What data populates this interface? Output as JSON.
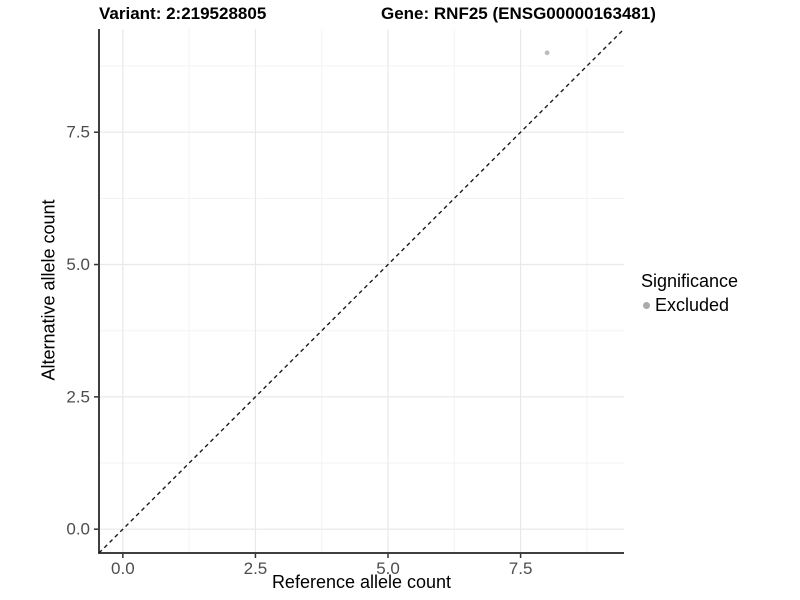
{
  "chart_data": {
    "type": "scatter",
    "titles": {
      "variant": "Variant: 2:219528805",
      "gene": "Gene: RNF25 (ENSG00000163481)"
    },
    "xlabel": "Reference allele count",
    "ylabel": "Alternative allele count",
    "xlim": [
      -0.45,
      9.45
    ],
    "ylim": [
      -0.45,
      9.45
    ],
    "xticks": {
      "values": [
        0,
        2.5,
        5,
        7.5
      ],
      "labels": [
        "0.0",
        "2.5",
        "5.0",
        "7.5"
      ],
      "minor": [
        1.25,
        3.75,
        6.25,
        8.75
      ]
    },
    "yticks": {
      "values": [
        0,
        2.5,
        5,
        7.5
      ],
      "labels": [
        "0.0",
        "2.5",
        "5.0",
        "7.5"
      ],
      "minor": [
        1.25,
        3.75,
        6.25,
        8.75
      ]
    },
    "grid": "major+minor",
    "reference_line": {
      "type": "identity",
      "slope": 1,
      "intercept": 0,
      "style": "dashed",
      "color": "#1a1a1a"
    },
    "points": [
      {
        "x": 8,
        "y": 9,
        "series": "Excluded"
      }
    ],
    "legend": {
      "position": "right",
      "title": "Significance",
      "items": [
        {
          "label": "Excluded",
          "color": "#ababab"
        }
      ]
    },
    "colors": {
      "grid_major": "#e9e9e9",
      "grid_minor": "#f3f3f3",
      "axis_line": "#3f3f3f",
      "tick_mark": "#333333",
      "tick_label": "#4d4d4d",
      "point": "#bdbdbd"
    }
  }
}
